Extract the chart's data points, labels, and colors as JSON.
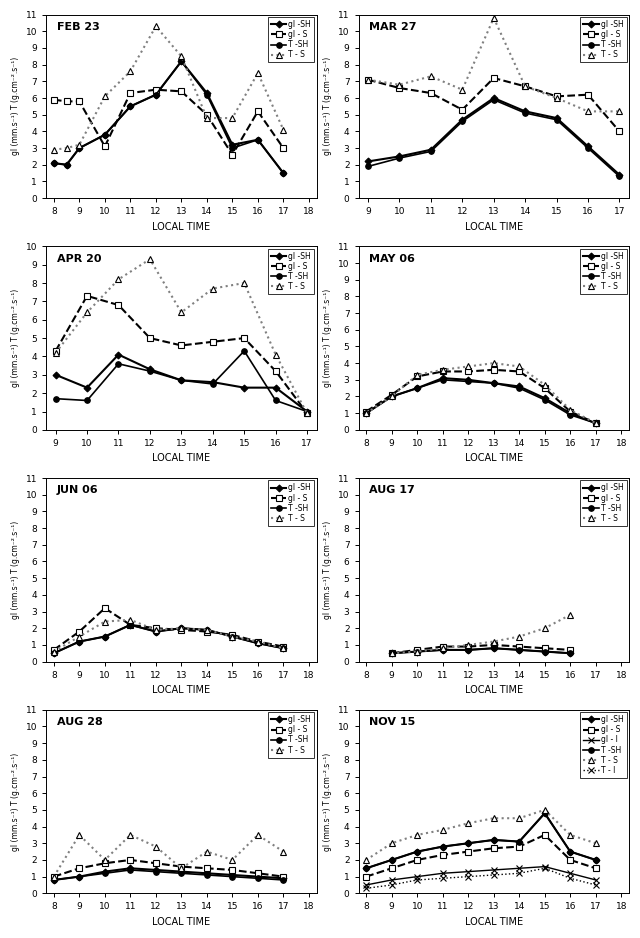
{
  "panels": [
    {
      "title": "FEB 23",
      "row": 0,
      "col": 0,
      "ylim": [
        0,
        11
      ],
      "yticks": [
        0,
        1,
        2,
        3,
        4,
        5,
        6,
        7,
        8,
        9,
        10,
        11
      ],
      "xticks": [
        8,
        9,
        10,
        11,
        12,
        13,
        14,
        15,
        16,
        17,
        18
      ],
      "xmin": 7.7,
      "xmax": 18.3,
      "series": [
        {
          "key": "gl_SH",
          "x": [
            8,
            8.5,
            9,
            10,
            11,
            12,
            13,
            14,
            15,
            16,
            17
          ],
          "y": [
            2.1,
            2.0,
            3.0,
            3.8,
            5.5,
            6.2,
            8.2,
            6.3,
            3.2,
            3.5,
            1.5
          ]
        },
        {
          "key": "gl_S",
          "x": [
            8,
            8.5,
            9,
            10,
            11,
            12,
            13,
            14,
            15,
            16,
            17
          ],
          "y": [
            5.9,
            5.8,
            5.8,
            3.1,
            6.3,
            6.5,
            6.4,
            5.0,
            2.6,
            5.2,
            3.0
          ]
        },
        {
          "key": "T_SH",
          "x": [
            8,
            8.5,
            9,
            10,
            11,
            12,
            13,
            14,
            15,
            16,
            17
          ],
          "y": [
            2.1,
            2.0,
            3.0,
            3.8,
            5.5,
            6.2,
            8.2,
            6.2,
            3.0,
            3.5,
            1.5
          ]
        },
        {
          "key": "T_S",
          "x": [
            8,
            8.5,
            9,
            10,
            11,
            12,
            13,
            14,
            15,
            16,
            17
          ],
          "y": [
            2.9,
            3.0,
            3.2,
            6.1,
            7.6,
            10.3,
            8.5,
            4.8,
            4.8,
            7.5,
            4.1
          ]
        }
      ]
    },
    {
      "title": "MAR 27",
      "row": 0,
      "col": 1,
      "ylim": [
        0,
        11
      ],
      "yticks": [
        0,
        1,
        2,
        3,
        4,
        5,
        6,
        7,
        8,
        9,
        10,
        11
      ],
      "xticks": [
        9,
        10,
        11,
        12,
        13,
        14,
        15,
        16,
        17
      ],
      "xmin": 8.7,
      "xmax": 17.3,
      "series": [
        {
          "key": "gl_SH",
          "x": [
            9,
            10,
            11,
            12,
            13,
            14,
            15,
            16,
            17
          ],
          "y": [
            2.2,
            2.5,
            2.9,
            4.7,
            6.0,
            5.2,
            4.8,
            3.1,
            1.4
          ]
        },
        {
          "key": "gl_S",
          "x": [
            9,
            10,
            11,
            12,
            13,
            14,
            15,
            16,
            17
          ],
          "y": [
            7.1,
            6.6,
            6.3,
            5.3,
            7.2,
            6.7,
            6.1,
            6.2,
            4.0
          ]
        },
        {
          "key": "T_SH",
          "x": [
            9,
            10,
            11,
            12,
            13,
            14,
            15,
            16,
            17
          ],
          "y": [
            1.9,
            2.4,
            2.8,
            4.6,
            5.9,
            5.1,
            4.7,
            3.0,
            1.3
          ]
        },
        {
          "key": "T_S",
          "x": [
            9,
            10,
            11,
            12,
            13,
            14,
            15,
            16,
            17
          ],
          "y": [
            7.1,
            6.8,
            7.3,
            6.5,
            10.8,
            6.7,
            6.0,
            5.2,
            5.2
          ]
        }
      ]
    },
    {
      "title": "APR 20",
      "row": 1,
      "col": 0,
      "ylim": [
        0,
        10
      ],
      "yticks": [
        0,
        1,
        2,
        3,
        4,
        5,
        6,
        7,
        8,
        9,
        10
      ],
      "xticks": [
        9,
        10,
        11,
        12,
        13,
        14,
        15,
        16,
        17
      ],
      "xmin": 8.7,
      "xmax": 17.3,
      "series": [
        {
          "key": "gl_SH",
          "x": [
            9,
            10,
            11,
            12,
            13,
            14,
            15,
            16,
            17
          ],
          "y": [
            3.0,
            2.3,
            4.1,
            3.3,
            2.7,
            2.6,
            2.3,
            2.3,
            1.0
          ]
        },
        {
          "key": "gl_S",
          "x": [
            9,
            10,
            11,
            12,
            13,
            14,
            15,
            16,
            17
          ],
          "y": [
            4.3,
            7.3,
            6.8,
            5.0,
            4.6,
            4.8,
            5.0,
            3.2,
            0.9
          ]
        },
        {
          "key": "T_SH",
          "x": [
            9,
            10,
            11,
            12,
            13,
            14,
            15,
            16,
            17
          ],
          "y": [
            1.7,
            1.6,
            3.6,
            3.2,
            2.7,
            2.5,
            4.3,
            1.6,
            1.0
          ]
        },
        {
          "key": "T_S",
          "x": [
            9,
            10,
            11,
            12,
            13,
            14,
            15,
            16,
            17
          ],
          "y": [
            4.2,
            6.4,
            8.2,
            9.3,
            6.4,
            7.7,
            8.0,
            4.1,
            0.9
          ]
        }
      ]
    },
    {
      "title": "MAY 06",
      "row": 1,
      "col": 1,
      "ylim": [
        0,
        11
      ],
      "yticks": [
        0,
        1,
        2,
        3,
        4,
        5,
        6,
        7,
        8,
        9,
        10,
        11
      ],
      "xticks": [
        8,
        9,
        10,
        11,
        12,
        13,
        14,
        15,
        16,
        17,
        18
      ],
      "xmin": 7.7,
      "xmax": 18.3,
      "series": [
        {
          "key": "gl_SH",
          "x": [
            8,
            9,
            10,
            11,
            12,
            13,
            14,
            15,
            16,
            17
          ],
          "y": [
            1.0,
            2.0,
            2.5,
            3.1,
            3.0,
            2.8,
            2.6,
            1.9,
            1.0,
            0.4
          ]
        },
        {
          "key": "gl_S",
          "x": [
            8,
            9,
            10,
            11,
            12,
            13,
            14,
            15,
            16,
            17
          ],
          "y": [
            1.1,
            2.1,
            3.2,
            3.5,
            3.5,
            3.6,
            3.5,
            2.5,
            1.1,
            0.4
          ]
        },
        {
          "key": "T_SH",
          "x": [
            8,
            9,
            10,
            11,
            12,
            13,
            14,
            15,
            16,
            17
          ],
          "y": [
            1.0,
            2.0,
            2.5,
            3.0,
            2.9,
            2.8,
            2.5,
            1.8,
            0.9,
            0.4
          ]
        },
        {
          "key": "T_S",
          "x": [
            8,
            9,
            10,
            11,
            12,
            13,
            14,
            15,
            16,
            17
          ],
          "y": [
            1.0,
            2.0,
            3.3,
            3.6,
            3.8,
            4.0,
            3.8,
            2.7,
            1.2,
            0.4
          ]
        }
      ]
    },
    {
      "title": "JUN 06",
      "row": 2,
      "col": 0,
      "ylim": [
        0,
        11
      ],
      "yticks": [
        0,
        1,
        2,
        3,
        4,
        5,
        6,
        7,
        8,
        9,
        10,
        11
      ],
      "xticks": [
        8,
        9,
        10,
        11,
        12,
        13,
        14,
        15,
        16,
        17,
        18
      ],
      "xmin": 7.7,
      "xmax": 18.3,
      "series": [
        {
          "key": "gl_SH",
          "x": [
            8,
            9,
            10,
            11,
            12,
            13,
            14,
            15,
            16,
            17
          ],
          "y": [
            0.5,
            1.2,
            1.5,
            2.2,
            1.8,
            2.0,
            1.9,
            1.5,
            1.1,
            0.8
          ]
        },
        {
          "key": "gl_S",
          "x": [
            8,
            9,
            10,
            11,
            12,
            13,
            14,
            15,
            16,
            17
          ],
          "y": [
            0.7,
            1.8,
            3.2,
            2.2,
            2.0,
            1.9,
            1.8,
            1.6,
            1.2,
            0.9
          ]
        },
        {
          "key": "T_SH",
          "x": [
            8,
            9,
            10,
            11,
            12,
            13,
            14,
            15,
            16,
            17
          ],
          "y": [
            0.5,
            1.2,
            1.5,
            2.2,
            1.8,
            2.0,
            1.9,
            1.5,
            1.1,
            0.8
          ]
        },
        {
          "key": "T_S",
          "x": [
            8,
            9,
            10,
            11,
            12,
            13,
            14,
            15,
            16,
            17
          ],
          "y": [
            0.6,
            1.5,
            2.4,
            2.5,
            1.9,
            2.0,
            1.9,
            1.5,
            1.2,
            0.8
          ]
        }
      ]
    },
    {
      "title": "AUG 17",
      "row": 2,
      "col": 1,
      "ylim": [
        0,
        11
      ],
      "yticks": [
        0,
        1,
        2,
        3,
        4,
        5,
        6,
        7,
        8,
        9,
        10,
        11
      ],
      "xticks": [
        8,
        9,
        10,
        11,
        12,
        13,
        14,
        15,
        16,
        17,
        18
      ],
      "xmin": 7.7,
      "xmax": 18.3,
      "series": [
        {
          "key": "gl_SH",
          "x": [
            9,
            10,
            11,
            12,
            13,
            14,
            15,
            16
          ],
          "y": [
            0.5,
            0.6,
            0.7,
            0.7,
            0.8,
            0.7,
            0.6,
            0.5
          ]
        },
        {
          "key": "gl_S",
          "x": [
            9,
            10,
            11,
            12,
            13,
            14,
            15,
            16
          ],
          "y": [
            0.5,
            0.7,
            0.9,
            0.9,
            1.0,
            0.9,
            0.8,
            0.7
          ]
        },
        {
          "key": "T_SH",
          "x": [
            9,
            10,
            11,
            12,
            13,
            14,
            15,
            16
          ],
          "y": [
            0.5,
            0.6,
            0.7,
            0.7,
            0.8,
            0.7,
            0.6,
            0.5
          ]
        },
        {
          "key": "T_S",
          "x": [
            9,
            10,
            11,
            12,
            13,
            14,
            15,
            16
          ],
          "y": [
            0.5,
            0.6,
            0.8,
            1.0,
            1.2,
            1.5,
            2.0,
            2.8
          ]
        }
      ]
    },
    {
      "title": "AUG 28",
      "row": 3,
      "col": 0,
      "ylim": [
        0,
        11
      ],
      "yticks": [
        0,
        1,
        2,
        3,
        4,
        5,
        6,
        7,
        8,
        9,
        10,
        11
      ],
      "xticks": [
        8,
        9,
        10,
        11,
        12,
        13,
        14,
        15,
        16,
        17,
        18
      ],
      "xmin": 7.7,
      "xmax": 18.3,
      "series": [
        {
          "key": "gl_SH",
          "x": [
            8,
            9,
            10,
            11,
            12,
            13,
            14,
            15,
            16,
            17
          ],
          "y": [
            0.8,
            1.0,
            1.3,
            1.5,
            1.4,
            1.3,
            1.2,
            1.1,
            1.0,
            0.9
          ]
        },
        {
          "key": "gl_S",
          "x": [
            8,
            9,
            10,
            11,
            12,
            13,
            14,
            15,
            16,
            17
          ],
          "y": [
            1.0,
            1.5,
            1.8,
            2.0,
            1.8,
            1.6,
            1.5,
            1.4,
            1.2,
            1.0
          ]
        },
        {
          "key": "T_SH",
          "x": [
            8,
            9,
            10,
            11,
            12,
            13,
            14,
            15,
            16,
            17
          ],
          "y": [
            0.8,
            1.0,
            1.2,
            1.4,
            1.3,
            1.2,
            1.1,
            1.0,
            0.9,
            0.8
          ]
        },
        {
          "key": "T_S",
          "x": [
            8,
            9,
            10,
            11,
            12,
            13,
            14,
            15,
            16,
            17
          ],
          "y": [
            1.0,
            3.5,
            2.0,
            3.5,
            2.8,
            1.5,
            2.5,
            2.0,
            3.5,
            2.5
          ]
        }
      ]
    },
    {
      "title": "NOV 15",
      "row": 3,
      "col": 1,
      "ylim": [
        0,
        11
      ],
      "yticks": [
        0,
        1,
        2,
        3,
        4,
        5,
        6,
        7,
        8,
        9,
        10,
        11
      ],
      "xticks": [
        8,
        9,
        10,
        11,
        12,
        13,
        14,
        15,
        16,
        17,
        18
      ],
      "xmin": 7.7,
      "xmax": 18.3,
      "series": [
        {
          "key": "gl_SH",
          "x": [
            8,
            9,
            10,
            11,
            12,
            13,
            14,
            15,
            16,
            17
          ],
          "y": [
            1.5,
            2.0,
            2.5,
            2.8,
            3.0,
            3.2,
            3.1,
            4.8,
            2.5,
            2.0
          ]
        },
        {
          "key": "gl_S",
          "x": [
            8,
            9,
            10,
            11,
            12,
            13,
            14,
            15,
            16,
            17
          ],
          "y": [
            1.0,
            1.5,
            2.0,
            2.3,
            2.5,
            2.7,
            2.8,
            3.5,
            2.0,
            1.5
          ]
        },
        {
          "key": "gl_I",
          "x": [
            8,
            9,
            10,
            11,
            12,
            13,
            14,
            15,
            16,
            17
          ],
          "y": [
            0.5,
            0.8,
            1.0,
            1.2,
            1.3,
            1.4,
            1.5,
            1.6,
            1.2,
            0.8
          ]
        },
        {
          "key": "T_SH",
          "x": [
            8,
            9,
            10,
            11,
            12,
            13,
            14,
            15,
            16,
            17
          ],
          "y": [
            1.5,
            2.0,
            2.5,
            2.8,
            3.0,
            3.2,
            3.1,
            4.8,
            2.5,
            2.0
          ]
        },
        {
          "key": "T_S",
          "x": [
            8,
            9,
            10,
            11,
            12,
            13,
            14,
            15,
            16,
            17
          ],
          "y": [
            2.0,
            3.0,
            3.5,
            3.8,
            4.2,
            4.5,
            4.5,
            5.0,
            3.5,
            3.0
          ]
        },
        {
          "key": "T_I",
          "x": [
            8,
            9,
            10,
            11,
            12,
            13,
            14,
            15,
            16,
            17
          ],
          "y": [
            0.3,
            0.5,
            0.8,
            0.9,
            1.0,
            1.1,
            1.2,
            1.5,
            0.9,
            0.5
          ]
        }
      ]
    }
  ],
  "ylabel": "gl (mm.s⁻¹) T (g.cm⁻².s⁻¹)",
  "xlabel": "LOCAL TIME",
  "style_map": {
    "gl_SH": {
      "color": "black",
      "ls": "-",
      "marker": "D",
      "ms": 3.5,
      "lw": 1.5,
      "mfc": "black",
      "label": "gl -SH"
    },
    "gl_S": {
      "color": "black",
      "ls": "--",
      "marker": "s",
      "ms": 4.0,
      "lw": 1.5,
      "mfc": "white",
      "label": "gl - S"
    },
    "gl_I": {
      "color": "black",
      "ls": "-",
      "marker": "x",
      "ms": 5.0,
      "lw": 1.0,
      "mfc": "black",
      "label": "gl - I"
    },
    "T_SH": {
      "color": "black",
      "ls": "-",
      "marker": "o",
      "ms": 4.0,
      "lw": 1.2,
      "mfc": "black",
      "label": "T -SH"
    },
    "T_S": {
      "color": "gray",
      "ls": ":",
      "marker": "^",
      "ms": 4.0,
      "lw": 1.5,
      "mfc": "white",
      "label": "T - S"
    },
    "T_I": {
      "color": "black",
      "ls": ":",
      "marker": "x",
      "ms": 5.0,
      "lw": 1.0,
      "mfc": "black",
      "label": "T - I"
    }
  }
}
